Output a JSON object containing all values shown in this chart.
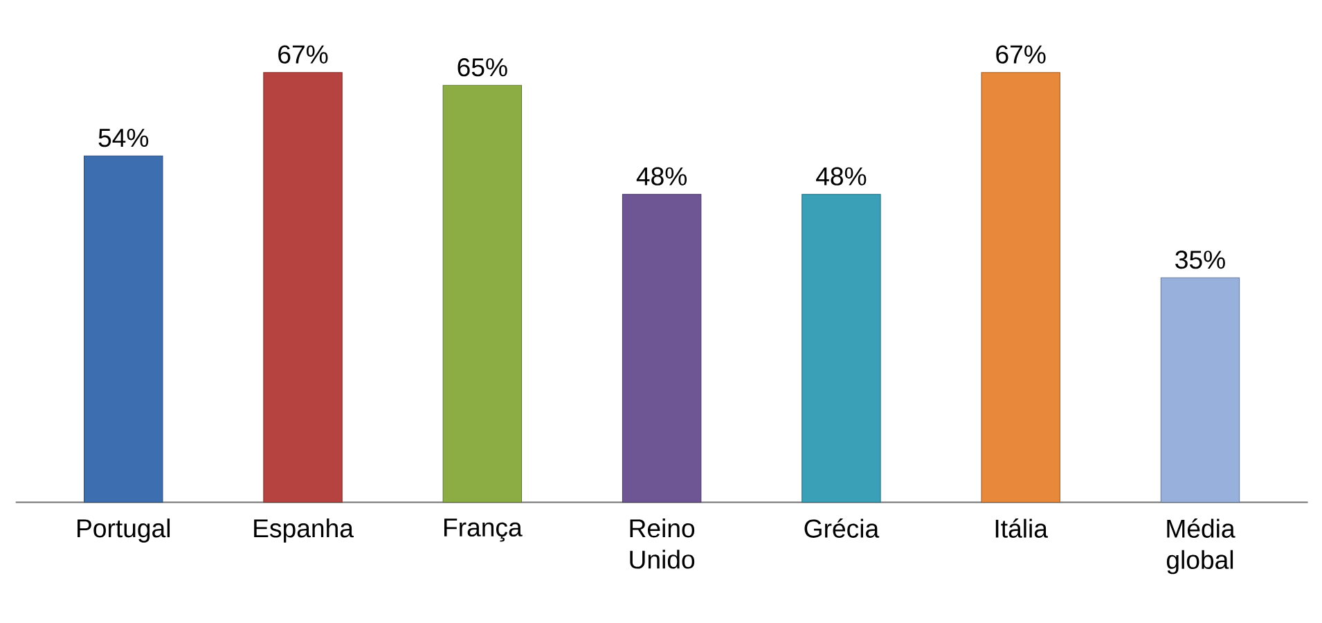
{
  "chart_data": {
    "type": "bar",
    "categories": [
      "Portugal",
      "Espanha",
      "França",
      "Reino Unido",
      "Grécia",
      "Itália",
      "Média global"
    ],
    "values": [
      54,
      67,
      65,
      48,
      48,
      67,
      35
    ],
    "colors": [
      "#3d6eb0",
      "#b64340",
      "#8cac44",
      "#6e5594",
      "#3aa0b8",
      "#e8883a",
      "#97b0dc"
    ],
    "value_labels": [
      "54%",
      "67%",
      "65%",
      "48%",
      "48%",
      "67%",
      "35%"
    ]
  }
}
